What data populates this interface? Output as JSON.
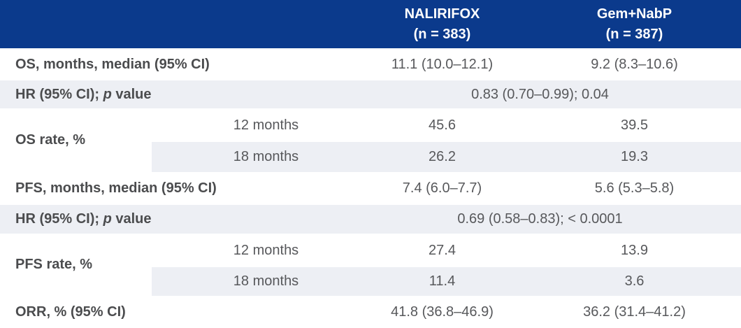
{
  "colors": {
    "header_bg": "#0B3A8C",
    "header_text": "#FFFFFF",
    "band_bg": "#EDEFF4",
    "label_text": "#4B4C4E",
    "value_text": "#57585B"
  },
  "header": {
    "nalirifox": {
      "name": "NALIRIFOX",
      "n": "(n = 383)"
    },
    "gemnabp": {
      "name": "Gem+NabP",
      "n": "(n = 387)"
    }
  },
  "rows": {
    "os_median": {
      "label": "OS, months, median (95% CI)",
      "nalirifox": "11.1 (10.0–12.1)",
      "gemnabp": "9.2 (8.3–10.6)"
    },
    "os_hr": {
      "label_prefix": "HR (95% CI); ",
      "label_italic": "p",
      "label_suffix": " value",
      "value": "0.83 (0.70–0.99); 0.04"
    },
    "os_rate": {
      "label": "OS rate, %",
      "sub12": "12 months",
      "sub18": "18 months",
      "m12": {
        "nalirifox": "45.6",
        "gemnabp": "39.5"
      },
      "m18": {
        "nalirifox": "26.2",
        "gemnabp": "19.3"
      }
    },
    "pfs_median": {
      "label": "PFS, months, median (95% CI)",
      "nalirifox": "7.4 (6.0–7.7)",
      "gemnabp": "5.6 (5.3–5.8)"
    },
    "pfs_hr": {
      "label_prefix": "HR (95% CI); ",
      "label_italic": "p",
      "label_suffix": " value",
      "value": "0.69 (0.58–0.83); < 0.0001"
    },
    "pfs_rate": {
      "label": "PFS rate, %",
      "sub12": "12 months",
      "sub18": "18 months",
      "m12": {
        "nalirifox": "27.4",
        "gemnabp": "13.9"
      },
      "m18": {
        "nalirifox": "11.4",
        "gemnabp": "3.6"
      }
    },
    "orr": {
      "label": "ORR, % (95% CI)",
      "nalirifox": "41.8 (36.8–46.9)",
      "gemnabp": "36.2 (31.4–41.2)"
    }
  }
}
